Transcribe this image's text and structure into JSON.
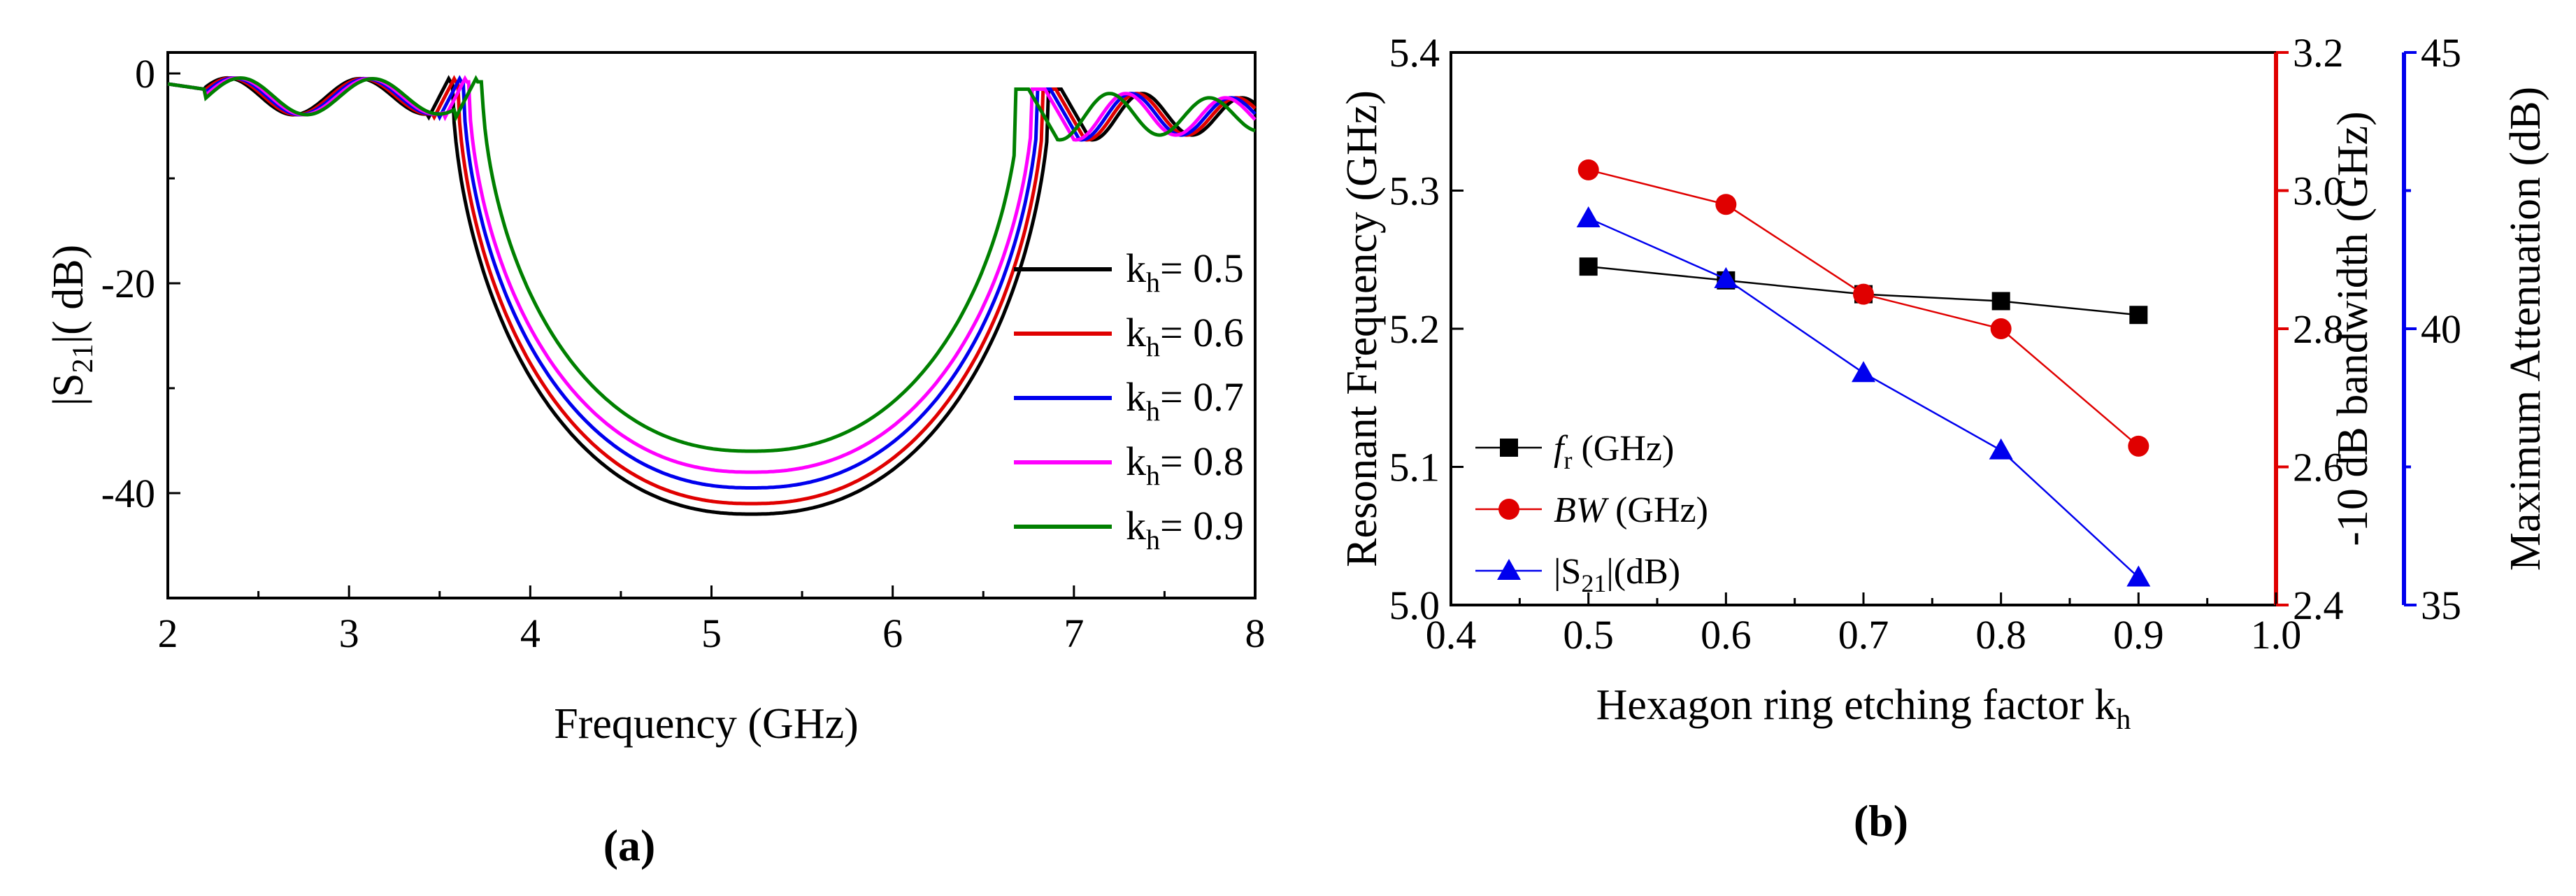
{
  "chart_data": [
    {
      "type": "line",
      "panel_label": "(a)",
      "xlabel": "Frequency  (GHz)",
      "ylabel": "|S21|( dB)",
      "ylabel_parts": {
        "pre": "|S",
        "sub": "21",
        "post": "|( dB)"
      },
      "xlim": [
        2,
        8
      ],
      "ylim": [
        -50,
        2
      ],
      "x_ticks": [
        "2",
        "3",
        "4",
        "5",
        "6",
        "7",
        "8"
      ],
      "y_ticks": [
        "0",
        "-20",
        "-40"
      ],
      "legend_position": "right",
      "series": [
        {
          "name": "kh= 0.5",
          "label_pre": "k",
          "label_sub": "h",
          "label_post": "= 0.5",
          "color": "#000000",
          "min_db": -42.0,
          "fc": 5.22,
          "edge_low": 3.55,
          "edge_high": 6.85
        },
        {
          "name": "kh= 0.6",
          "label_pre": "k",
          "label_sub": "h",
          "label_post": "= 0.6",
          "color": "#e00000",
          "min_db": -41.0,
          "fc": 5.22,
          "edge_low": 3.58,
          "edge_high": 6.82
        },
        {
          "name": "kh= 0.7",
          "label_pre": "k",
          "label_sub": "h",
          "label_post": "= 0.7",
          "color": "#0000ee",
          "min_db": -39.5,
          "fc": 5.22,
          "edge_low": 3.61,
          "edge_high": 6.79
        },
        {
          "name": "kh= 0.8",
          "label_pre": "k",
          "label_sub": "h",
          "label_post": "= 0.8",
          "color": "#ff00ff",
          "min_db": -38.0,
          "fc": 5.22,
          "edge_low": 3.64,
          "edge_high": 6.76
        },
        {
          "name": "kh= 0.9",
          "label_pre": "k",
          "label_sub": "h",
          "label_post": "= 0.9",
          "color": "#008000",
          "min_db": -36.0,
          "fc": 5.22,
          "edge_low": 3.7,
          "edge_high": 6.67
        }
      ]
    },
    {
      "type": "line",
      "panel_label": "(b)",
      "xlabel": "Hexagon ring etching factor kh",
      "xlabel_parts": {
        "pre": "Hexagon ring etching factor k",
        "sub": "h"
      },
      "xlim": [
        0.4,
        1.0
      ],
      "x_ticks": [
        "0.4",
        "0.5",
        "0.6",
        "0.7",
        "0.8",
        "0.9",
        "1.0"
      ],
      "x": [
        0.5,
        0.6,
        0.7,
        0.8,
        0.9
      ],
      "axes": {
        "left": {
          "label": "Resonant Frequency (GHz)",
          "lim": [
            5.0,
            5.4
          ],
          "ticks": [
            "5.0",
            "5.1",
            "5.2",
            "5.3",
            "5.4"
          ],
          "color": "#000000"
        },
        "right1": {
          "label": "-10 dB  bandwidth  (GHz)",
          "lim": [
            2.4,
            3.2
          ],
          "ticks": [
            "2.4",
            "2.6",
            "2.8",
            "3.0",
            "3.2"
          ],
          "color": "#e00000"
        },
        "right2": {
          "label": "Maximum Attenuation (dB)",
          "lim": [
            35,
            45
          ],
          "ticks": [
            "35",
            "40",
            "45"
          ],
          "color": "#0000ee"
        }
      },
      "series": [
        {
          "name": "fr (GHz)",
          "label_italic": "f",
          "label_sub": "r",
          "label_post": " (GHz)",
          "axis": "left",
          "marker": "square",
          "color": "#000000",
          "values": [
            5.245,
            5.235,
            5.225,
            5.22,
            5.21
          ]
        },
        {
          "name": "BW (GHz)",
          "label_italic": "BW",
          "label_sub": "",
          "label_post": " (GHz)",
          "axis": "right1",
          "marker": "circle",
          "color": "#e00000",
          "values": [
            3.03,
            2.98,
            2.85,
            2.8,
            2.63
          ]
        },
        {
          "name": "|S21|(dB)",
          "label_italic": "",
          "label_pre": "|S",
          "label_sub": "21",
          "label_post": "|(dB)",
          "axis": "right2",
          "marker": "triangle",
          "color": "#0000ee",
          "values": [
            42.0,
            40.9,
            39.2,
            37.8,
            35.5
          ]
        }
      ]
    }
  ]
}
